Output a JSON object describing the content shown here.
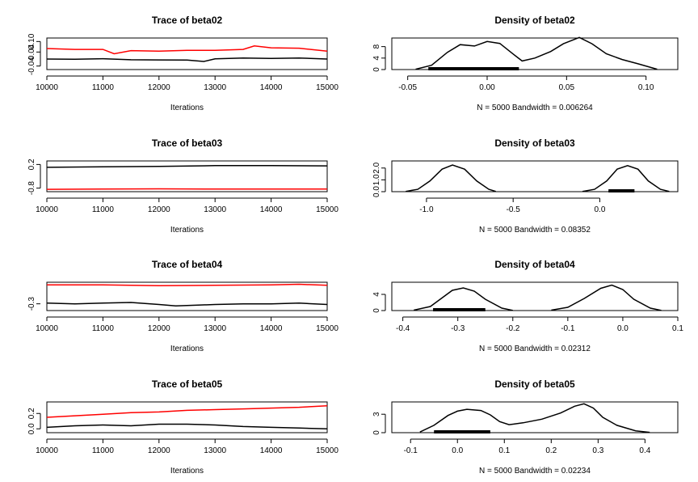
{
  "chart_data": [
    {
      "type": "line",
      "title": "Trace of beta02",
      "xlabel": "Iterations",
      "xlim": [
        10000,
        15000
      ],
      "xticks": [
        10000,
        11000,
        12000,
        13000,
        14000,
        15000
      ],
      "ylim": [
        -0.06,
        0.12
      ],
      "yticks": [
        -0.04,
        0.04,
        0.1
      ],
      "ytick_labels": [
        "-0.04",
        "0.04",
        "0.10"
      ],
      "grid": false,
      "series": [
        {
          "color": "#000000",
          "x": [
            10000,
            10500,
            11000,
            11500,
            12000,
            12500,
            12800,
            13000,
            13500,
            14000,
            14500,
            15000
          ],
          "values": [
            0.0,
            -0.001,
            0.002,
            -0.004,
            -0.005,
            -0.006,
            -0.014,
            0.001,
            0.006,
            0.003,
            0.006,
            0.0
          ]
        },
        {
          "color": "#ff0000",
          "x": [
            10000,
            10500,
            11000,
            11200,
            11500,
            12000,
            12500,
            13000,
            13500,
            13700,
            14000,
            14500,
            15000
          ],
          "values": [
            0.06,
            0.055,
            0.055,
            0.03,
            0.048,
            0.045,
            0.05,
            0.05,
            0.055,
            0.075,
            0.064,
            0.062,
            0.045
          ]
        }
      ]
    },
    {
      "type": "line",
      "title": "Density of beta02",
      "xlim": [
        -0.06,
        0.12
      ],
      "xticks": [
        -0.05,
        0.0,
        0.05,
        0.1
      ],
      "xtick_labels": [
        "-0.05",
        "0.00",
        "0.05",
        "0.10"
      ],
      "ylim": [
        0,
        11
      ],
      "yticks": [
        0,
        4,
        8
      ],
      "caption": "N = 5000   Bandwidth = 0.006264",
      "rug": [
        -0.037,
        0.02
      ],
      "series": [
        {
          "color": "#000000",
          "x": [
            -0.045,
            -0.035,
            -0.025,
            -0.017,
            -0.008,
            0.0,
            0.008,
            0.015,
            0.022,
            0.03,
            0.04,
            0.048,
            0.058,
            0.066,
            0.075,
            0.085,
            0.095,
            0.107
          ],
          "values": [
            0.1,
            1.5,
            6.0,
            8.7,
            8.2,
            9.8,
            9.1,
            6.0,
            3.0,
            4.0,
            6.3,
            9.0,
            11.2,
            9.0,
            5.5,
            3.5,
            2.0,
            0.1
          ]
        }
      ]
    },
    {
      "type": "line",
      "title": "Trace of beta03",
      "xlabel": "Iterations",
      "xlim": [
        10000,
        15000
      ],
      "xticks": [
        10000,
        11000,
        12000,
        13000,
        14000,
        15000
      ],
      "ylim": [
        -0.95,
        0.35
      ],
      "yticks": [
        -0.8,
        0.2
      ],
      "ytick_labels": [
        "-0.8",
        "0.2"
      ],
      "grid": false,
      "series": [
        {
          "color": "#000000",
          "x": [
            10000,
            11000,
            12000,
            13000,
            14000,
            15000
          ],
          "values": [
            0.08,
            0.1,
            0.12,
            0.15,
            0.15,
            0.14
          ]
        },
        {
          "color": "#ff0000",
          "x": [
            10000,
            11000,
            12000,
            13000,
            14000,
            15000
          ],
          "values": [
            -0.85,
            -0.84,
            -0.83,
            -0.84,
            -0.84,
            -0.84
          ]
        }
      ]
    },
    {
      "type": "line",
      "title": "Density of beta03",
      "xlim": [
        -1.2,
        0.45
      ],
      "xticks": [
        -1.0,
        -0.5,
        0.0
      ],
      "xtick_labels": [
        "-1.0",
        "-0.5",
        "0.0"
      ],
      "ylim": [
        0,
        2.6
      ],
      "yticks": [
        0,
        1.0,
        2.0
      ],
      "ytick_labels": [
        "0.0",
        "1.0",
        "2.0"
      ],
      "caption": "N = 5000   Bandwidth = 0.08352",
      "rug": [
        0.05,
        0.2
      ],
      "series": [
        {
          "color": "#000000",
          "x": [
            -1.12,
            -1.05,
            -0.98,
            -0.91,
            -0.85,
            -0.78,
            -0.71,
            -0.64,
            -0.6
          ],
          "values": [
            0.02,
            0.2,
            0.9,
            1.9,
            2.25,
            1.9,
            0.9,
            0.2,
            0.02
          ]
        },
        {
          "color": "#000000",
          "x": [
            -0.1,
            -0.03,
            0.04,
            0.1,
            0.16,
            0.22,
            0.28,
            0.35,
            0.4
          ],
          "values": [
            0.02,
            0.2,
            0.9,
            1.9,
            2.2,
            1.9,
            0.9,
            0.2,
            0.02
          ]
        }
      ]
    },
    {
      "type": "line",
      "title": "Trace of beta04",
      "xlabel": "Iterations",
      "xlim": [
        10000,
        15000
      ],
      "xticks": [
        10000,
        11000,
        12000,
        13000,
        14000,
        15000
      ],
      "ylim": [
        -0.4,
        0.02
      ],
      "yticks": [
        -0.3
      ],
      "ytick_labels": [
        "-0.3"
      ],
      "grid": false,
      "series": [
        {
          "color": "#000000",
          "x": [
            10000,
            10500,
            11000,
            11500,
            12000,
            12300,
            12700,
            13000,
            13500,
            14000,
            14500,
            15000
          ],
          "values": [
            -0.29,
            -0.3,
            -0.29,
            -0.28,
            -0.31,
            -0.33,
            -0.32,
            -0.31,
            -0.3,
            -0.3,
            -0.29,
            -0.31
          ]
        },
        {
          "color": "#ff0000",
          "x": [
            10000,
            11000,
            12000,
            13000,
            14000,
            14500,
            15000
          ],
          "values": [
            -0.02,
            -0.02,
            -0.03,
            -0.025,
            -0.02,
            -0.01,
            -0.025
          ]
        }
      ]
    },
    {
      "type": "line",
      "title": "Density of beta04",
      "xlim": [
        -0.42,
        0.1
      ],
      "xticks": [
        -0.4,
        -0.3,
        -0.2,
        -0.1,
        0.0,
        0.1
      ],
      "xtick_labels": [
        "-0.4",
        "-0.3",
        "-0.2",
        "-0.1",
        "0.0",
        "0.1"
      ],
      "ylim": [
        0,
        7
      ],
      "yticks": [
        0,
        4
      ],
      "caption": "N = 5000   Bandwidth = 0.02312",
      "rug": [
        -0.345,
        -0.25
      ],
      "series": [
        {
          "color": "#000000",
          "x": [
            -0.38,
            -0.35,
            -0.33,
            -0.31,
            -0.29,
            -0.27,
            -0.25,
            -0.22,
            -0.2
          ],
          "values": [
            0.1,
            1.0,
            3.0,
            5.0,
            5.6,
            4.8,
            2.8,
            0.6,
            0.05
          ]
        },
        {
          "color": "#000000",
          "x": [
            -0.13,
            -0.1,
            -0.07,
            -0.04,
            -0.02,
            0.0,
            0.02,
            0.05,
            0.07
          ],
          "values": [
            0.1,
            0.8,
            3.0,
            5.5,
            6.3,
            5.2,
            2.8,
            0.6,
            0.05
          ]
        }
      ]
    },
    {
      "type": "line",
      "title": "Trace of beta05",
      "xlabel": "Iterations",
      "xlim": [
        10000,
        15000
      ],
      "xticks": [
        10000,
        11000,
        12000,
        13000,
        14000,
        15000
      ],
      "ylim": [
        -0.05,
        0.35
      ],
      "yticks": [
        0.0,
        0.2
      ],
      "ytick_labels": [
        "0.0",
        "0.2"
      ],
      "grid": false,
      "series": [
        {
          "color": "#000000",
          "x": [
            10000,
            10500,
            11000,
            11500,
            12000,
            12500,
            13000,
            13500,
            14000,
            14500,
            15000
          ],
          "values": [
            0.02,
            0.04,
            0.05,
            0.04,
            0.06,
            0.06,
            0.05,
            0.03,
            0.02,
            0.01,
            0.0
          ]
        },
        {
          "color": "#ff0000",
          "x": [
            10000,
            10500,
            11000,
            11500,
            12000,
            12500,
            13000,
            13500,
            14000,
            14500,
            15000
          ],
          "values": [
            0.15,
            0.17,
            0.19,
            0.21,
            0.22,
            0.24,
            0.25,
            0.26,
            0.27,
            0.28,
            0.3
          ]
        }
      ]
    },
    {
      "type": "line",
      "title": "Density of beta05",
      "xlim": [
        -0.14,
        0.47
      ],
      "xticks": [
        -0.1,
        0.0,
        0.1,
        0.2,
        0.3,
        0.4
      ],
      "xtick_labels": [
        "-0.1",
        "0.0",
        "0.1",
        "0.2",
        "0.3",
        "0.4"
      ],
      "ylim": [
        0,
        5
      ],
      "yticks": [
        0,
        3
      ],
      "caption": "N = 5000   Bandwidth = 0.02234",
      "rug": [
        -0.05,
        0.07
      ],
      "series": [
        {
          "color": "#000000",
          "x": [
            -0.08,
            -0.05,
            -0.02,
            0.0,
            0.02,
            0.05,
            0.07,
            0.09,
            0.11,
            0.14,
            0.18,
            0.22,
            0.25,
            0.27,
            0.29,
            0.31,
            0.34,
            0.38,
            0.41
          ],
          "values": [
            0.1,
            1.2,
            2.8,
            3.5,
            3.8,
            3.6,
            2.9,
            1.8,
            1.3,
            1.6,
            2.2,
            3.2,
            4.3,
            4.7,
            4.0,
            2.5,
            1.2,
            0.3,
            0.05
          ]
        }
      ]
    }
  ]
}
